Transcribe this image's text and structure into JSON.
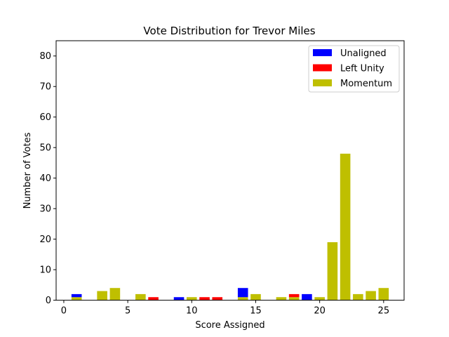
{
  "chart_data": {
    "type": "bar",
    "stacked": true,
    "title": "Vote Distribution for Trevor Miles",
    "xlabel": "Score Assigned",
    "ylabel": "Number of Votes",
    "xlim": [
      -0.6,
      26.6
    ],
    "ylim": [
      0,
      85
    ],
    "xticks": [
      0,
      5,
      10,
      15,
      20,
      25
    ],
    "yticks": [
      0,
      10,
      20,
      30,
      40,
      50,
      60,
      70,
      80
    ],
    "grid": false,
    "legend_position": "top-right",
    "x": [
      1,
      2,
      3,
      4,
      5,
      6,
      7,
      8,
      9,
      10,
      11,
      12,
      13,
      14,
      15,
      16,
      17,
      18,
      19,
      20,
      21,
      22,
      23,
      24,
      25
    ],
    "series": [
      {
        "name": "Momentum",
        "color": "#bfbf00",
        "values": [
          1,
          0,
          3,
          4,
          0,
          2,
          0,
          0,
          0,
          1,
          0,
          0,
          0,
          1,
          2,
          0,
          1,
          1,
          0,
          1,
          19,
          48,
          2,
          3,
          4
        ]
      },
      {
        "name": "Left Unity",
        "color": "#ff0000",
        "values": [
          0,
          0,
          0,
          0,
          0,
          0,
          1,
          0,
          0,
          0,
          1,
          1,
          0,
          0,
          0,
          0,
          0,
          1,
          0,
          0,
          0,
          0,
          0,
          0,
          0
        ]
      },
      {
        "name": "Unaligned",
        "color": "#0000ff",
        "values": [
          1,
          0,
          0,
          0,
          0,
          0,
          0,
          0,
          1,
          0,
          0,
          0,
          0,
          3,
          0,
          0,
          0,
          0,
          2,
          0,
          0,
          0,
          0,
          0,
          0
        ]
      }
    ],
    "legend_order": [
      "Unaligned",
      "Left Unity",
      "Momentum"
    ]
  }
}
